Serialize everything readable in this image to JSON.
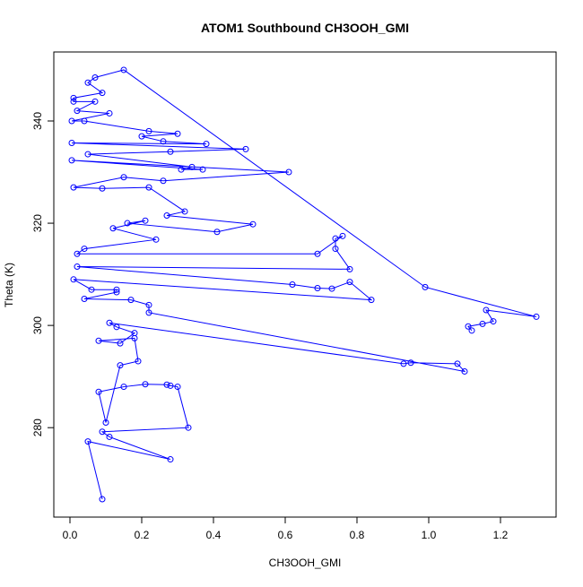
{
  "chart_data": {
    "type": "line",
    "title": "ATOM1 Southbound CH3OOH_GMI",
    "xlabel": "CH3OOH_GMI",
    "ylabel": "Theta (K)",
    "markers": true,
    "color": "#0000ff",
    "series": [
      {
        "name": "CH3OOH_GMI",
        "color": "#0000ff",
        "x": [
          0.09,
          0.05,
          0.28,
          0.11,
          0.09,
          0.33,
          0.3,
          0.28,
          0.27,
          0.21,
          0.15,
          0.08,
          0.1,
          0.14,
          0.19,
          0.18,
          0.08,
          0.14,
          0.18,
          0.13,
          0.11,
          0.93,
          0.95,
          1.08,
          1.1,
          0.22,
          0.22,
          0.17,
          0.04,
          0.13,
          0.13,
          0.06,
          0.01,
          0.84,
          0.78,
          0.73,
          0.69,
          0.62,
          0.02,
          0.78,
          0.74,
          0.74,
          0.76,
          0.69,
          0.02,
          0.04,
          0.24,
          0.12,
          0.21,
          0.16,
          0.41,
          0.51,
          0.27,
          0.32,
          0.22,
          0.09,
          0.01,
          0.15,
          0.26,
          0.61,
          0.005,
          0.37,
          0.31,
          0.34,
          0.05,
          0.28,
          0.49,
          0.005,
          0.38,
          0.26,
          0.2,
          0.3,
          0.22,
          0.04,
          0.005,
          0.11,
          0.02,
          0.07,
          0.01,
          0.01,
          0.09,
          0.05,
          0.07,
          0.15,
          0.99,
          1.3,
          1.16,
          1.18,
          1.15,
          1.11,
          1.12
        ],
        "values": [
          266,
          277.3,
          273.8,
          278.2,
          279.2,
          280,
          288,
          288.2,
          288.4,
          288.5,
          288,
          287,
          281,
          292.2,
          293,
          297.5,
          297,
          296.5,
          298.5,
          299.7,
          300.5,
          292.5,
          292.7,
          292.5,
          291,
          302.5,
          304,
          305,
          305.2,
          306.5,
          307,
          307,
          309,
          305,
          308.5,
          307.2,
          307.3,
          308,
          311.5,
          311,
          315,
          317,
          317.5,
          314,
          314,
          315,
          316.8,
          319,
          320.5,
          320,
          318.3,
          319.8,
          321.5,
          322.3,
          327,
          326.8,
          327,
          329,
          328.3,
          330,
          332.3,
          330.5,
          330.5,
          331,
          333.5,
          334,
          334.5,
          335.7,
          335.5,
          336,
          337,
          337.5,
          338,
          340,
          340,
          341.5,
          342,
          343.8,
          343.8,
          344.5,
          345.5,
          347.5,
          348.5,
          350,
          307.5,
          301.7,
          303,
          300.8,
          300.3,
          299.8,
          299
        ]
      }
    ],
    "xlim": [
      -0.045,
      1.355
    ],
    "ylim": [
      262.5,
      353.5
    ],
    "xticks": [
      {
        "value": 0,
        "label": "0.0"
      },
      {
        "value": 0.2,
        "label": "0.2"
      },
      {
        "value": 0.4,
        "label": "0.4"
      },
      {
        "value": 0.6,
        "label": "0.6"
      },
      {
        "value": 0.8,
        "label": "0.8"
      },
      {
        "value": 1,
        "label": "1.0"
      },
      {
        "value": 1.2,
        "label": "1.2"
      }
    ],
    "yticks": [
      280,
      300,
      320,
      340
    ]
  }
}
